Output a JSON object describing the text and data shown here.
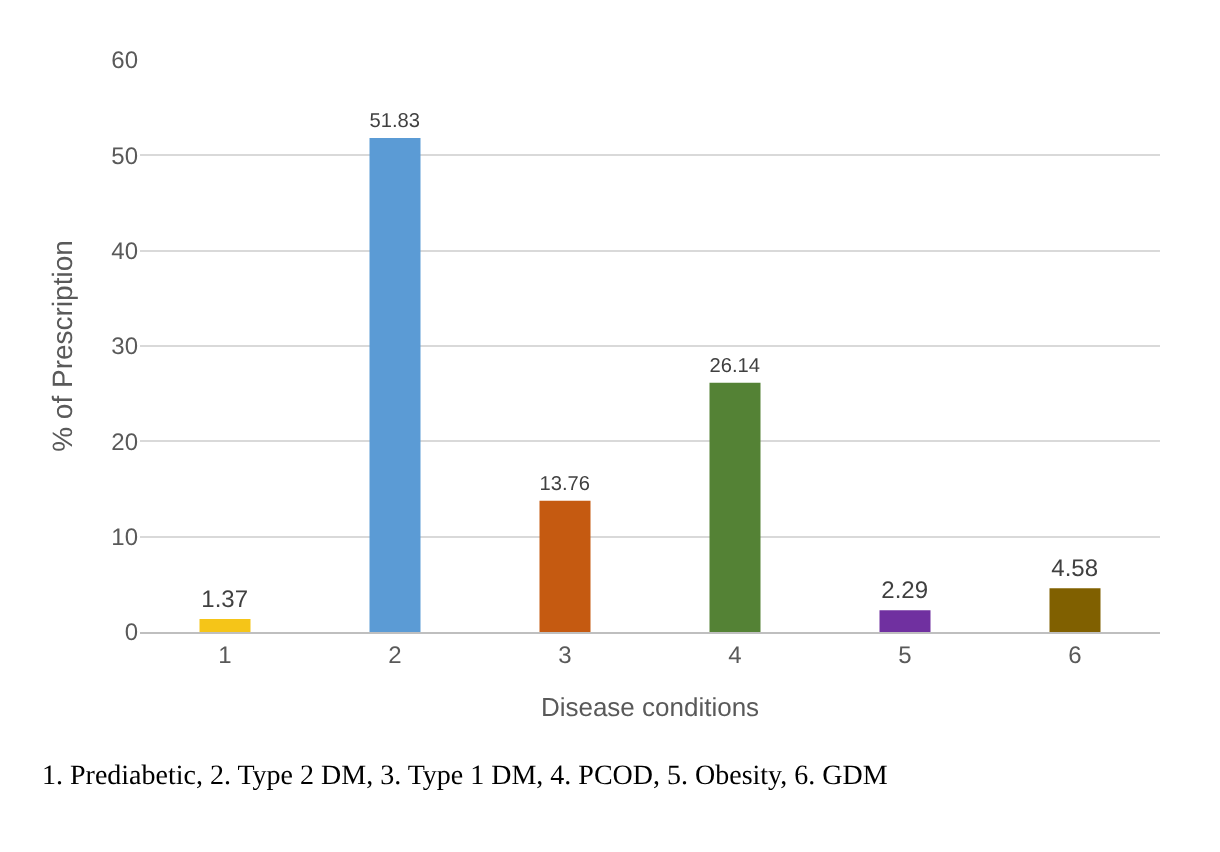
{
  "chart_data": {
    "type": "bar",
    "xlabel": "Disease conditions",
    "ylabel": "% of Prescription",
    "categories": [
      "1",
      "2",
      "3",
      "4",
      "5",
      "6"
    ],
    "values": [
      1.37,
      51.83,
      13.76,
      26.14,
      2.29,
      4.58
    ],
    "colors": [
      "#f5c518",
      "#5b9bd5",
      "#c55a11",
      "#548235",
      "#7030a0",
      "#806000"
    ],
    "ylim": [
      0,
      60
    ],
    "yticks": [
      0,
      10,
      20,
      30,
      40,
      50,
      60
    ],
    "grid": "y",
    "data_labels": true,
    "annotations": [
      "1. Prediabetic, 2. Type 2 DM, 3. Type 1 DM, 4. PCOD, 5. Obesity, 6. GDM"
    ]
  }
}
